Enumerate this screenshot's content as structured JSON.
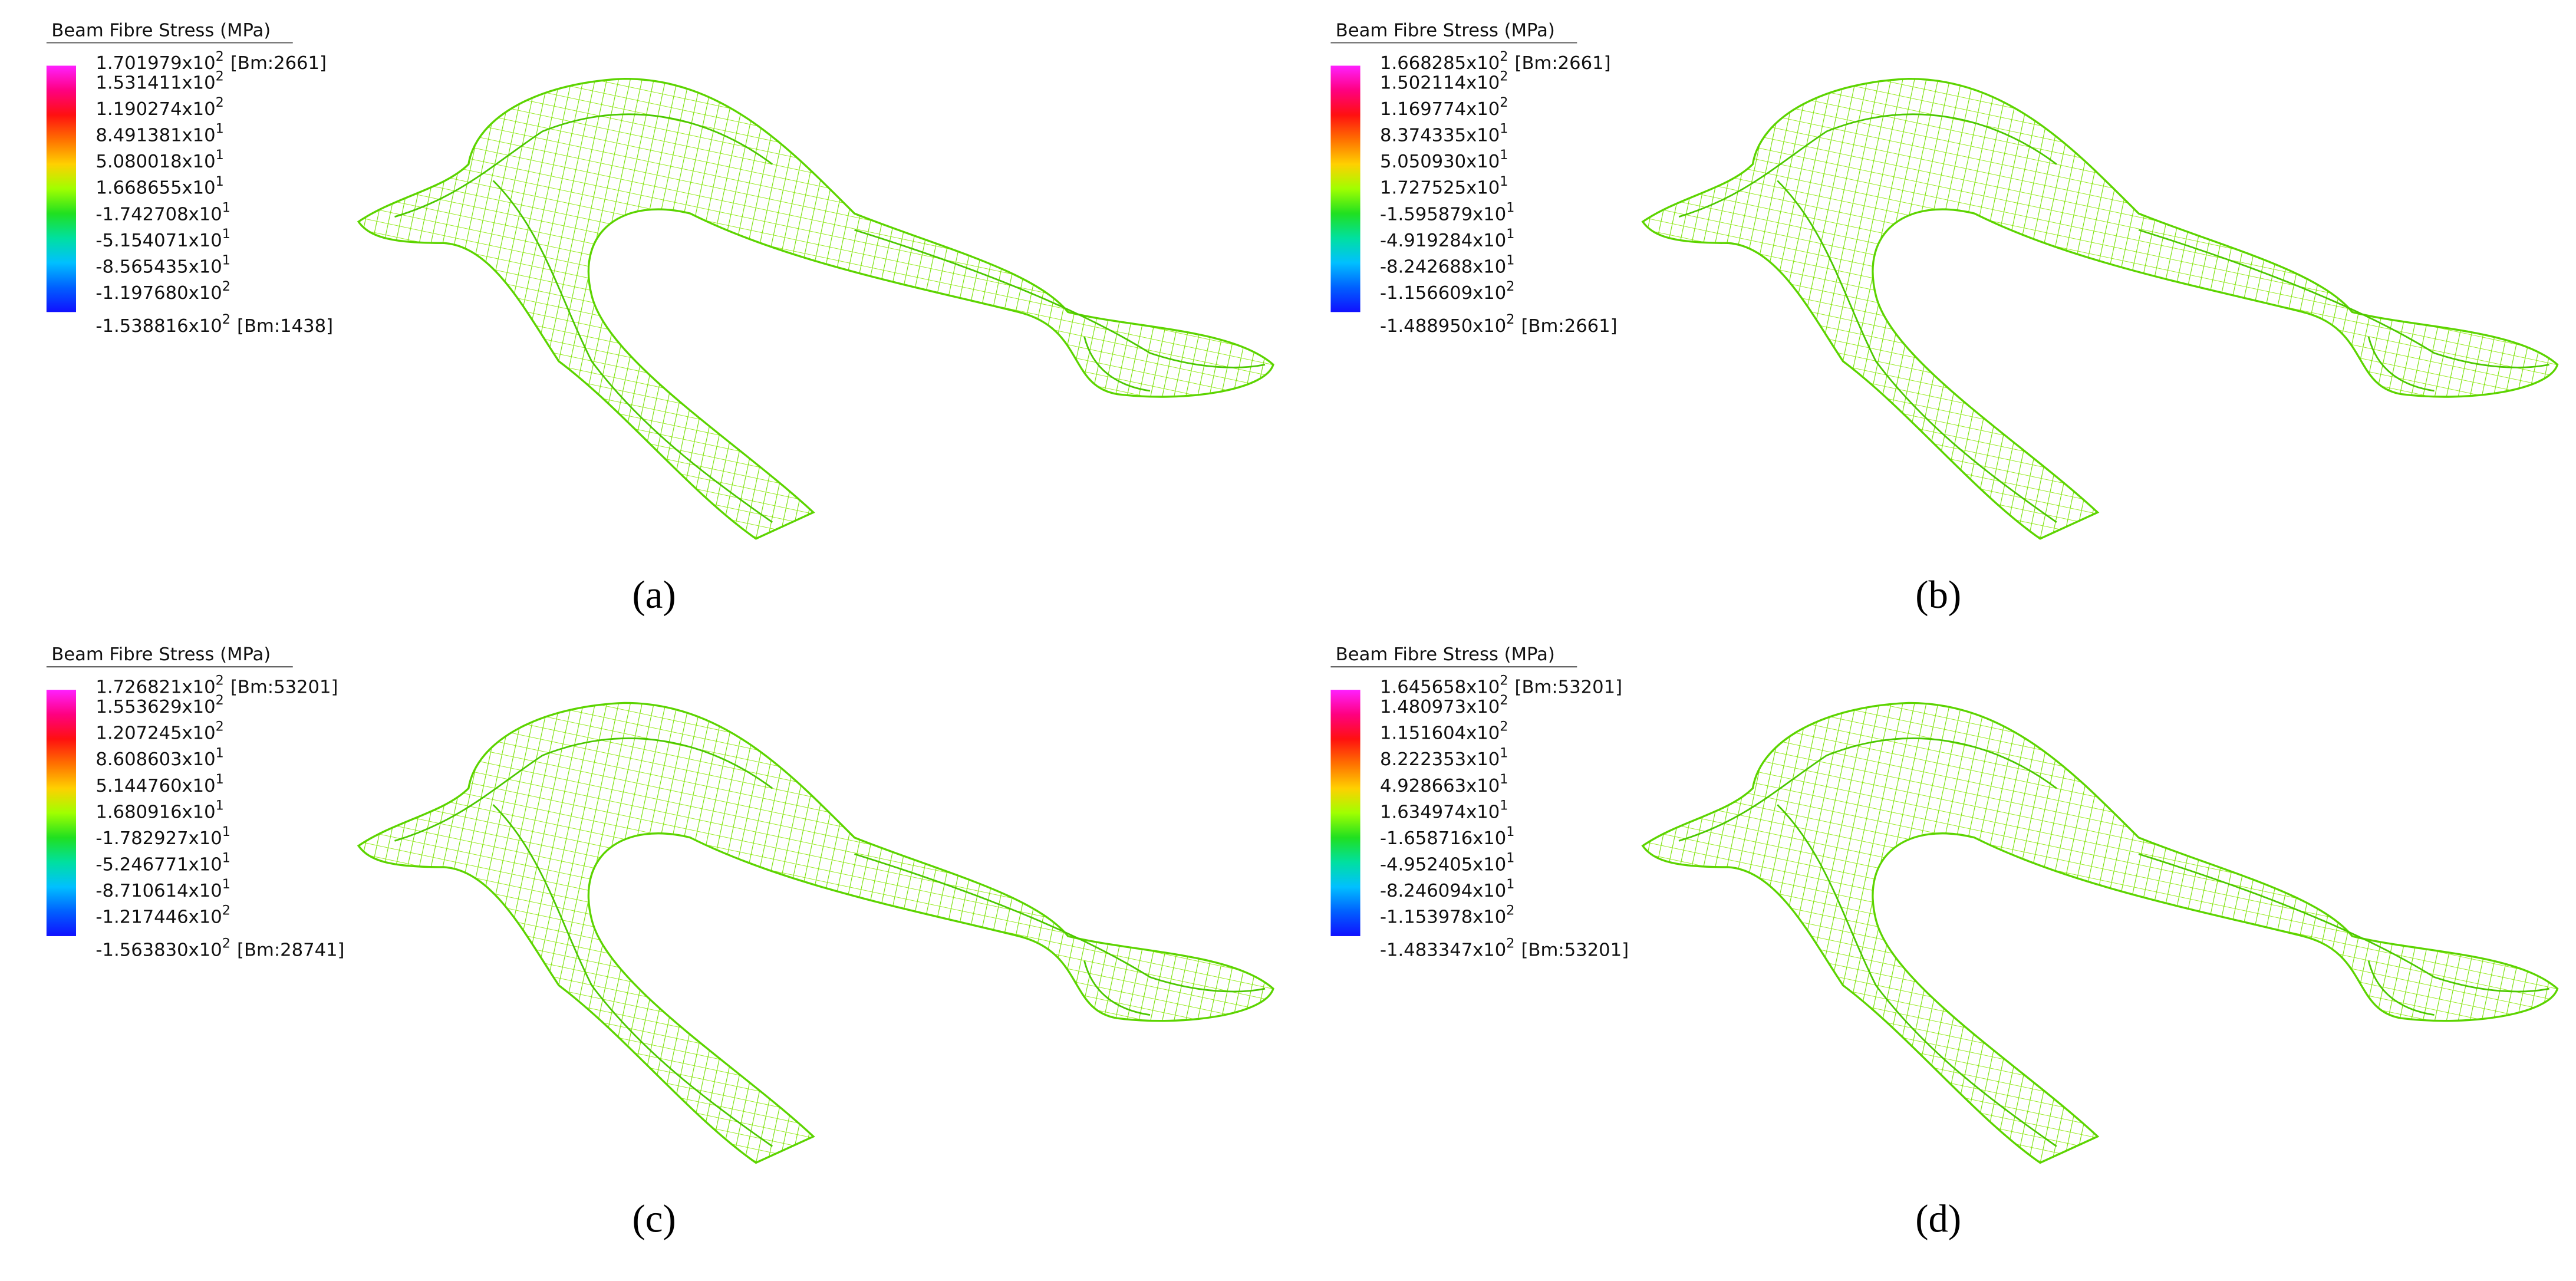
{
  "panels": [
    {
      "legend": {
        "title": "Beam Fibre Stress  (MPa)",
        "labels": [
          {
            "mantissa": "1.701979x10",
            "exponent": "2",
            "note": "[Bm:2661]"
          },
          {
            "mantissa": "1.531411x10",
            "exponent": "2"
          },
          {
            "mantissa": "1.190274x10",
            "exponent": "2"
          },
          {
            "mantissa": "8.491381x10",
            "exponent": "1"
          },
          {
            "mantissa": "5.080018x10",
            "exponent": "1"
          },
          {
            "mantissa": "1.668655x10",
            "exponent": "1"
          },
          {
            "mantissa": "-1.742708x10",
            "exponent": "1"
          },
          {
            "mantissa": "-5.154071x10",
            "exponent": "1"
          },
          {
            "mantissa": "-8.565435x10",
            "exponent": "1"
          },
          {
            "mantissa": "-1.197680x10",
            "exponent": "2"
          },
          {
            "mantissa": "-1.538816x10",
            "exponent": "2",
            "note": "[Bm:1438]"
          }
        ]
      },
      "caption": "(a)"
    },
    {
      "legend": {
        "title": "Beam Fibre Stress  (MPa)",
        "labels": [
          {
            "mantissa": "1.668285x10",
            "exponent": "2",
            "note": "[Bm:2661]"
          },
          {
            "mantissa": "1.502114x10",
            "exponent": "2"
          },
          {
            "mantissa": "1.169774x10",
            "exponent": "2"
          },
          {
            "mantissa": "8.374335x10",
            "exponent": "1"
          },
          {
            "mantissa": "5.050930x10",
            "exponent": "1"
          },
          {
            "mantissa": "1.727525x10",
            "exponent": "1"
          },
          {
            "mantissa": "-1.595879x10",
            "exponent": "1"
          },
          {
            "mantissa": "-4.919284x10",
            "exponent": "1"
          },
          {
            "mantissa": "-8.242688x10",
            "exponent": "1"
          },
          {
            "mantissa": "-1.156609x10",
            "exponent": "2"
          },
          {
            "mantissa": "-1.488950x10",
            "exponent": "2",
            "note": "[Bm:2661]"
          }
        ]
      },
      "caption": "(b)"
    },
    {
      "legend": {
        "title": "Beam Fibre Stress  (MPa)",
        "labels": [
          {
            "mantissa": "1.726821x10",
            "exponent": "2",
            "note": "[Bm:53201]"
          },
          {
            "mantissa": "1.553629x10",
            "exponent": "2"
          },
          {
            "mantissa": "1.207245x10",
            "exponent": "2"
          },
          {
            "mantissa": "8.608603x10",
            "exponent": "1"
          },
          {
            "mantissa": "5.144760x10",
            "exponent": "1"
          },
          {
            "mantissa": "1.680916x10",
            "exponent": "1"
          },
          {
            "mantissa": "-1.782927x10",
            "exponent": "1"
          },
          {
            "mantissa": "-5.246771x10",
            "exponent": "1"
          },
          {
            "mantissa": "-8.710614x10",
            "exponent": "1"
          },
          {
            "mantissa": "-1.217446x10",
            "exponent": "2"
          },
          {
            "mantissa": "-1.563830x10",
            "exponent": "2",
            "note": "[Bm:28741]"
          }
        ]
      },
      "caption": "(c)"
    },
    {
      "legend": {
        "title": "Beam Fibre Stress  (MPa)",
        "labels": [
          {
            "mantissa": "1.645658x10",
            "exponent": "2",
            "note": "[Bm:53201]"
          },
          {
            "mantissa": "1.480973x10",
            "exponent": "2"
          },
          {
            "mantissa": "1.151604x10",
            "exponent": "2"
          },
          {
            "mantissa": "8.222353x10",
            "exponent": "1"
          },
          {
            "mantissa": "4.928663x10",
            "exponent": "1"
          },
          {
            "mantissa": "1.634974x10",
            "exponent": "1"
          },
          {
            "mantissa": "-1.658716x10",
            "exponent": "1"
          },
          {
            "mantissa": "-4.952405x10",
            "exponent": "1"
          },
          {
            "mantissa": "-8.246094x10",
            "exponent": "1"
          },
          {
            "mantissa": "-1.153978x10",
            "exponent": "2"
          },
          {
            "mantissa": "-1.483347x10",
            "exponent": "2",
            "note": "[Bm:53201]"
          }
        ]
      },
      "caption": "(d)"
    }
  ]
}
